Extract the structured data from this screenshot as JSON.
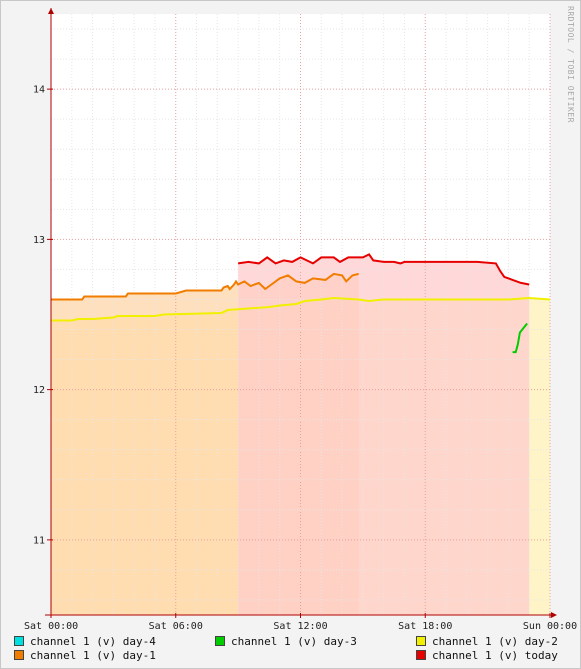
{
  "watermark": "RRDTOOL / TOBI OETIKER",
  "chart_data": {
    "type": "line",
    "ylim": [
      10.5,
      14.5
    ],
    "yticks": [
      11,
      12,
      13,
      14
    ],
    "ytick_labels": [
      "11",
      "12",
      "13",
      "14"
    ],
    "xlim": [
      0,
      24
    ],
    "xticks": [
      0,
      6,
      12,
      18,
      24
    ],
    "xtick_labels": [
      "Sat 00:00",
      "Sat 06:00",
      "Sat 12:00",
      "Sat 18:00",
      "Sun 00:00"
    ],
    "grid": true,
    "legend_position": "bottom",
    "series": [
      {
        "name": "channel 1 (v) day-4",
        "color": "#00e0e0",
        "points": []
      },
      {
        "name": "channel 1 (v) day-3",
        "color": "#00cc00",
        "points": [
          [
            22.2,
            12.25
          ],
          [
            22.35,
            12.25
          ],
          [
            22.45,
            12.3
          ],
          [
            22.55,
            12.38
          ],
          [
            22.9,
            12.44
          ]
        ]
      },
      {
        "name": "channel 1 (v) day-2",
        "color": "#f0f000",
        "fill": "#fff0b4",
        "points": [
          [
            0,
            12.46
          ],
          [
            1.0,
            12.46
          ],
          [
            1.3,
            12.47
          ],
          [
            2.0,
            12.47
          ],
          [
            3.0,
            12.48
          ],
          [
            3.2,
            12.49
          ],
          [
            5.0,
            12.49
          ],
          [
            5.4,
            12.5
          ],
          [
            8.2,
            12.51
          ],
          [
            8.5,
            12.53
          ],
          [
            9.5,
            12.54
          ],
          [
            10.5,
            12.55
          ],
          [
            11.0,
            12.56
          ],
          [
            11.8,
            12.57
          ],
          [
            12.2,
            12.59
          ],
          [
            13.0,
            12.6
          ],
          [
            13.6,
            12.61
          ],
          [
            14.8,
            12.6
          ],
          [
            15.3,
            12.59
          ],
          [
            16.0,
            12.6
          ],
          [
            22.0,
            12.6
          ],
          [
            23.0,
            12.61
          ],
          [
            24.0,
            12.6
          ]
        ]
      },
      {
        "name": "channel 1 (v) day-1",
        "color": "#f07d00",
        "fill": "#ffd5a8",
        "points": [
          [
            0,
            12.6
          ],
          [
            1.5,
            12.6
          ],
          [
            1.6,
            12.62
          ],
          [
            3.6,
            12.62
          ],
          [
            3.7,
            12.64
          ],
          [
            6.0,
            12.64
          ],
          [
            6.5,
            12.66
          ],
          [
            8.2,
            12.66
          ],
          [
            8.3,
            12.68
          ],
          [
            8.5,
            12.69
          ],
          [
            8.6,
            12.67
          ],
          [
            8.8,
            12.7
          ],
          [
            8.9,
            12.72
          ],
          [
            9.0,
            12.7
          ],
          [
            9.3,
            12.72
          ],
          [
            9.6,
            12.69
          ],
          [
            10.0,
            12.71
          ],
          [
            10.3,
            12.67
          ],
          [
            10.6,
            12.7
          ],
          [
            11.0,
            12.74
          ],
          [
            11.4,
            12.76
          ],
          [
            11.8,
            12.72
          ],
          [
            12.2,
            12.71
          ],
          [
            12.6,
            12.74
          ],
          [
            13.2,
            12.73
          ],
          [
            13.6,
            12.77
          ],
          [
            14.0,
            12.76
          ],
          [
            14.2,
            12.72
          ],
          [
            14.5,
            12.76
          ],
          [
            14.8,
            12.77
          ]
        ]
      },
      {
        "name": "channel 1 (v) today",
        "color": "#e60000",
        "fill": "#ffcccc",
        "points": [
          [
            9.0,
            12.84
          ],
          [
            9.5,
            12.85
          ],
          [
            10.0,
            12.84
          ],
          [
            10.4,
            12.88
          ],
          [
            10.8,
            12.84
          ],
          [
            11.2,
            12.86
          ],
          [
            11.6,
            12.85
          ],
          [
            12.0,
            12.88
          ],
          [
            12.6,
            12.84
          ],
          [
            13.0,
            12.88
          ],
          [
            13.6,
            12.88
          ],
          [
            13.9,
            12.85
          ],
          [
            14.3,
            12.88
          ],
          [
            15.0,
            12.88
          ],
          [
            15.3,
            12.9
          ],
          [
            15.5,
            12.86
          ],
          [
            16.0,
            12.85
          ],
          [
            16.5,
            12.85
          ],
          [
            16.8,
            12.84
          ],
          [
            17.0,
            12.85
          ],
          [
            19.0,
            12.85
          ],
          [
            20.5,
            12.85
          ],
          [
            21.4,
            12.84
          ],
          [
            21.6,
            12.79
          ],
          [
            21.8,
            12.75
          ],
          [
            22.2,
            12.73
          ],
          [
            22.6,
            12.71
          ],
          [
            23.0,
            12.7
          ]
        ]
      }
    ]
  }
}
